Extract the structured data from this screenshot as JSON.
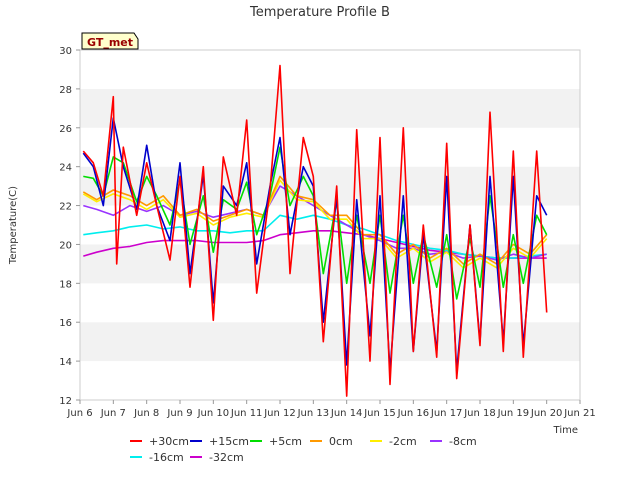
{
  "chart_data": {
    "type": "line",
    "title": "Temperature Profile B",
    "xlabel": "Time",
    "ylabel": "Temperature(C)",
    "badge": "GT_met",
    "ylim": [
      12,
      30
    ],
    "yticks": [
      12,
      14,
      16,
      18,
      20,
      22,
      24,
      26,
      28,
      30
    ],
    "xlim": [
      6,
      21
    ],
    "xticks": [
      {
        "v": 6,
        "label": "Jun 6"
      },
      {
        "v": 7,
        "label": "Jun 7"
      },
      {
        "v": 8,
        "label": "Jun 8"
      },
      {
        "v": 9,
        "label": "Jun 9"
      },
      {
        "v": 10,
        "label": "Jun 10"
      },
      {
        "v": 11,
        "label": "Jun 11"
      },
      {
        "v": 12,
        "label": "Jun 12"
      },
      {
        "v": 13,
        "label": "Jun 13"
      },
      {
        "v": 14,
        "label": "Jun 14"
      },
      {
        "v": 15,
        "label": "Jun 15"
      },
      {
        "v": 16,
        "label": "Jun 16"
      },
      {
        "v": 17,
        "label": "Jun 17"
      },
      {
        "v": 18,
        "label": "Jun 18"
      },
      {
        "v": 19,
        "label": "Jun 19"
      },
      {
        "v": 20,
        "label": "Jun 20"
      },
      {
        "v": 21,
        "label": "Jun 21"
      }
    ],
    "legend_position": "bottom",
    "grid": "horizontal bands",
    "series": [
      {
        "name": "+30cm",
        "color": "#ff0000",
        "x": [
          6.1,
          6.4,
          6.7,
          7.0,
          7.1,
          7.3,
          7.7,
          8.0,
          8.3,
          8.7,
          9.0,
          9.3,
          9.7,
          10.0,
          10.3,
          10.7,
          11.0,
          11.3,
          11.7,
          12.0,
          12.3,
          12.7,
          13.0,
          13.3,
          13.7,
          14.0,
          14.3,
          14.7,
          15.0,
          15.3,
          15.7,
          16.0,
          16.3,
          16.7,
          17.0,
          17.3,
          17.7,
          18.0,
          18.3,
          18.7,
          19.0,
          19.3,
          19.7,
          20.0
        ],
        "y": [
          24.8,
          24.2,
          22.5,
          27.6,
          19.0,
          25.0,
          21.5,
          24.2,
          22.0,
          19.2,
          23.5,
          17.8,
          24.0,
          16.1,
          24.5,
          21.5,
          26.4,
          17.5,
          22.8,
          29.2,
          18.5,
          25.5,
          23.5,
          15.0,
          23.0,
          12.2,
          25.9,
          14.0,
          25.5,
          12.8,
          26.0,
          14.5,
          21.0,
          14.2,
          25.2,
          13.1,
          21.0,
          14.8,
          26.8,
          14.5,
          24.8,
          14.2,
          24.8,
          16.5
        ]
      },
      {
        "name": "+15cm",
        "color": "#0000cc",
        "x": [
          6.1,
          6.4,
          6.7,
          7.0,
          7.3,
          7.7,
          8.0,
          8.3,
          8.7,
          9.0,
          9.3,
          9.7,
          10.0,
          10.3,
          10.7,
          11.0,
          11.3,
          11.7,
          12.0,
          12.3,
          12.7,
          13.0,
          13.3,
          13.7,
          14.0,
          14.3,
          14.7,
          15.0,
          15.3,
          15.7,
          16.0,
          16.3,
          16.7,
          17.0,
          17.3,
          17.7,
          18.0,
          18.3,
          18.7,
          19.0,
          19.3,
          19.7,
          20.0
        ],
        "y": [
          24.7,
          24.0,
          22.0,
          26.5,
          24.0,
          21.8,
          25.1,
          22.0,
          20.2,
          24.2,
          18.5,
          23.6,
          17.0,
          23.0,
          22.0,
          24.2,
          19.0,
          23.0,
          25.5,
          20.5,
          24.0,
          23.0,
          16.0,
          22.5,
          13.8,
          22.3,
          15.3,
          22.5,
          13.5,
          22.5,
          14.5,
          20.5,
          14.5,
          23.5,
          13.5,
          21.0,
          15.0,
          23.5,
          15.0,
          23.5,
          14.8,
          22.5,
          21.5
        ]
      },
      {
        "name": "+5cm",
        "color": "#00dd00",
        "x": [
          6.1,
          6.4,
          6.7,
          7.0,
          7.3,
          7.7,
          8.0,
          8.3,
          8.7,
          9.0,
          9.3,
          9.7,
          10.0,
          10.3,
          10.7,
          11.0,
          11.3,
          11.7,
          12.0,
          12.3,
          12.7,
          13.0,
          13.3,
          13.7,
          14.0,
          14.3,
          14.7,
          15.0,
          15.3,
          15.7,
          16.0,
          16.3,
          16.7,
          17.0,
          17.3,
          17.7,
          18.0,
          18.3,
          18.7,
          19.0,
          19.3,
          19.7,
          20.0
        ],
        "y": [
          23.5,
          23.4,
          22.5,
          24.5,
          24.2,
          22.2,
          23.5,
          22.5,
          21.0,
          23.3,
          20.0,
          22.5,
          19.6,
          22.3,
          21.8,
          23.2,
          20.5,
          22.5,
          25.0,
          22.0,
          23.5,
          22.5,
          18.5,
          22.2,
          18.0,
          21.5,
          18.0,
          21.5,
          17.5,
          21.5,
          18.0,
          20.5,
          17.8,
          20.5,
          17.2,
          20.3,
          17.8,
          22.5,
          17.8,
          20.5,
          18.0,
          21.5,
          20.5
        ]
      },
      {
        "name": "0cm",
        "color": "#ff9900",
        "x": [
          6.1,
          6.5,
          7.0,
          7.5,
          8.0,
          8.5,
          9.0,
          9.5,
          10.0,
          10.5,
          11.0,
          11.5,
          12.0,
          12.5,
          13.0,
          13.5,
          14.0,
          14.5,
          15.0,
          15.5,
          16.0,
          16.5,
          17.0,
          17.5,
          18.0,
          18.5,
          19.0,
          19.5,
          20.0
        ],
        "y": [
          22.7,
          22.3,
          22.8,
          22.5,
          22.0,
          22.5,
          21.5,
          21.8,
          21.2,
          21.5,
          21.8,
          21.5,
          23.5,
          22.5,
          22.3,
          21.5,
          21.5,
          20.5,
          20.5,
          19.5,
          20.0,
          19.3,
          19.8,
          19.0,
          19.5,
          19.0,
          20.0,
          19.5,
          20.5
        ]
      },
      {
        "name": "-2cm",
        "color": "#ffee00",
        "x": [
          6.1,
          6.5,
          7.0,
          7.5,
          8.0,
          8.5,
          9.0,
          9.5,
          10.0,
          10.5,
          11.0,
          11.5,
          12.0,
          12.5,
          13.0,
          13.5,
          14.0,
          14.5,
          15.0,
          15.5,
          16.0,
          16.5,
          17.0,
          17.5,
          18.0,
          18.5,
          19.0,
          19.5,
          20.0
        ],
        "y": [
          22.6,
          22.2,
          22.6,
          22.3,
          21.8,
          22.3,
          21.4,
          21.6,
          21.0,
          21.4,
          21.6,
          21.4,
          23.3,
          22.3,
          22.2,
          21.3,
          21.3,
          20.3,
          20.3,
          19.3,
          19.8,
          19.1,
          19.6,
          18.8,
          19.3,
          18.8,
          19.8,
          19.3,
          20.3
        ]
      },
      {
        "name": "-8cm",
        "color": "#9933ff",
        "x": [
          6.1,
          6.5,
          7.0,
          7.5,
          8.0,
          8.5,
          9.0,
          9.5,
          10.0,
          10.5,
          11.0,
          11.5,
          12.0,
          12.5,
          13.0,
          13.5,
          14.0,
          14.5,
          15.0,
          15.5,
          16.0,
          16.5,
          17.0,
          17.5,
          18.0,
          18.5,
          19.0,
          19.5,
          20.0
        ],
        "y": [
          22.0,
          21.8,
          21.5,
          22.0,
          21.7,
          22.0,
          21.5,
          21.7,
          21.4,
          21.6,
          21.8,
          21.5,
          23.0,
          22.5,
          22.0,
          21.5,
          21.0,
          20.5,
          20.2,
          19.8,
          19.8,
          19.5,
          19.6,
          19.3,
          19.4,
          19.2,
          19.5,
          19.3,
          19.5
        ]
      },
      {
        "name": "-16cm",
        "color": "#00eeee",
        "x": [
          6.1,
          6.5,
          7.0,
          7.5,
          8.0,
          8.5,
          9.0,
          9.5,
          10.0,
          10.5,
          11.0,
          11.5,
          12.0,
          12.5,
          13.0,
          13.5,
          14.0,
          14.5,
          15.0,
          15.5,
          16.0,
          16.5,
          17.0,
          17.5,
          18.0,
          18.5,
          19.0,
          19.5,
          20.0
        ],
        "y": [
          20.5,
          20.6,
          20.7,
          20.9,
          21.0,
          20.8,
          20.9,
          20.7,
          20.7,
          20.6,
          20.7,
          20.7,
          21.5,
          21.3,
          21.5,
          21.3,
          21.0,
          20.8,
          20.5,
          20.2,
          20.0,
          19.8,
          19.7,
          19.5,
          19.4,
          19.3,
          19.3,
          19.4,
          19.5
        ]
      },
      {
        "name": "-32cm",
        "color": "#cc00cc",
        "x": [
          6.1,
          6.5,
          7.0,
          7.5,
          8.0,
          8.5,
          9.0,
          9.5,
          10.0,
          10.5,
          11.0,
          11.5,
          12.0,
          12.5,
          13.0,
          13.5,
          14.0,
          14.5,
          15.0,
          15.5,
          16.0,
          16.5,
          17.0,
          17.5,
          18.0,
          18.5,
          19.0,
          19.5,
          20.0
        ],
        "y": [
          19.4,
          19.6,
          19.8,
          19.9,
          20.1,
          20.2,
          20.2,
          20.2,
          20.1,
          20.1,
          20.1,
          20.2,
          20.5,
          20.6,
          20.7,
          20.7,
          20.6,
          20.5,
          20.3,
          20.1,
          19.9,
          19.7,
          19.6,
          19.5,
          19.4,
          19.3,
          19.3,
          19.3,
          19.3
        ]
      }
    ]
  }
}
